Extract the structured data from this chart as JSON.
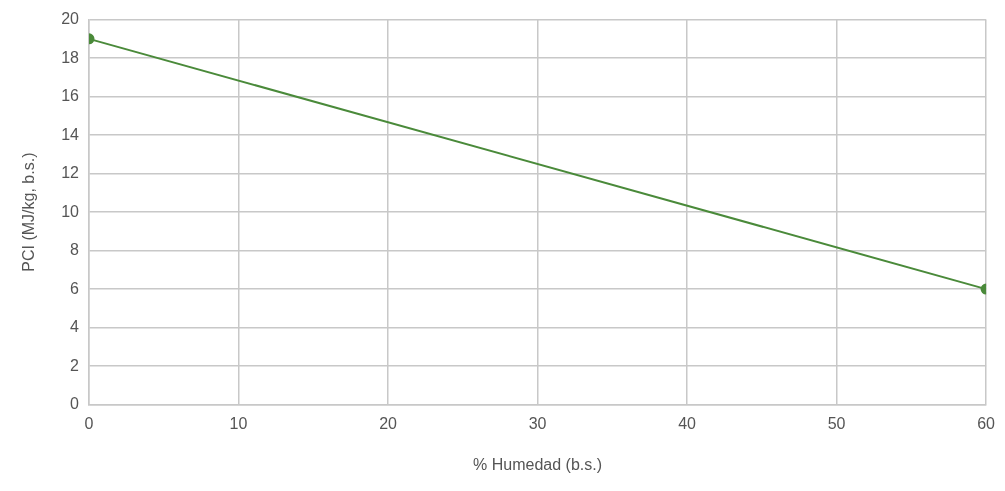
{
  "chart_data": {
    "type": "line",
    "xlabel": "% Humedad (b.s.)",
    "ylabel": "PCI (MJ/kg, b.s.)",
    "series": [
      {
        "x": [
          0,
          60
        ],
        "values": [
          19,
          6
        ],
        "color": "#4a8a3a"
      }
    ],
    "xlim": [
      0,
      60
    ],
    "xticks": [
      0,
      10,
      20,
      30,
      40,
      50,
      60
    ],
    "ylim": [
      0,
      20
    ],
    "yticks": [
      0,
      2,
      4,
      6,
      8,
      10,
      12,
      14,
      16,
      18,
      20
    ],
    "grid": true,
    "legend": false,
    "marker": "circle",
    "line_style": "solid"
  }
}
